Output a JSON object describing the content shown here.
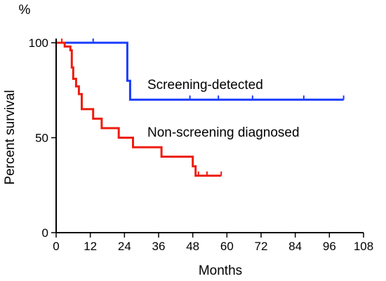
{
  "chart_data": {
    "type": "line",
    "title": "",
    "xlabel": "Months",
    "ylabel": "Percent survival",
    "y_unit_label": "%",
    "xlim": [
      0,
      108
    ],
    "ylim": [
      0,
      100
    ],
    "x_ticks": [
      0,
      12,
      24,
      36,
      48,
      60,
      72,
      84,
      96,
      108
    ],
    "y_ticks": [
      0,
      50,
      100
    ],
    "grid": false,
    "legend": "none (inline labels)",
    "series": [
      {
        "name": "Screening-detected",
        "color": "#1a3cff",
        "step_points": [
          [
            0,
            100
          ],
          [
            25,
            100
          ],
          [
            25,
            80
          ],
          [
            26,
            80
          ],
          [
            26,
            70
          ],
          [
            101,
            70
          ]
        ],
        "censor_times": [
          13,
          47,
          57,
          69,
          87,
          101
        ]
      },
      {
        "name": "Non-screening diagnosed",
        "color": "#ee1c0f",
        "step_points": [
          [
            0,
            100
          ],
          [
            3,
            100
          ],
          [
            3,
            98
          ],
          [
            5,
            98
          ],
          [
            5,
            96
          ],
          [
            5.5,
            96
          ],
          [
            5.5,
            87
          ],
          [
            6,
            87
          ],
          [
            6,
            81
          ],
          [
            7,
            81
          ],
          [
            7,
            77
          ],
          [
            8,
            77
          ],
          [
            8,
            73
          ],
          [
            9,
            73
          ],
          [
            9,
            65
          ],
          [
            13,
            65
          ],
          [
            13,
            60
          ],
          [
            16,
            60
          ],
          [
            16,
            55
          ],
          [
            22,
            55
          ],
          [
            22,
            50
          ],
          [
            27,
            50
          ],
          [
            27,
            45
          ],
          [
            37,
            45
          ],
          [
            37,
            40
          ],
          [
            48,
            40
          ],
          [
            48,
            35
          ],
          [
            49,
            35
          ],
          [
            49,
            30
          ],
          [
            58,
            30
          ]
        ],
        "censor_times": [
          2,
          50,
          53,
          58
        ]
      }
    ]
  }
}
